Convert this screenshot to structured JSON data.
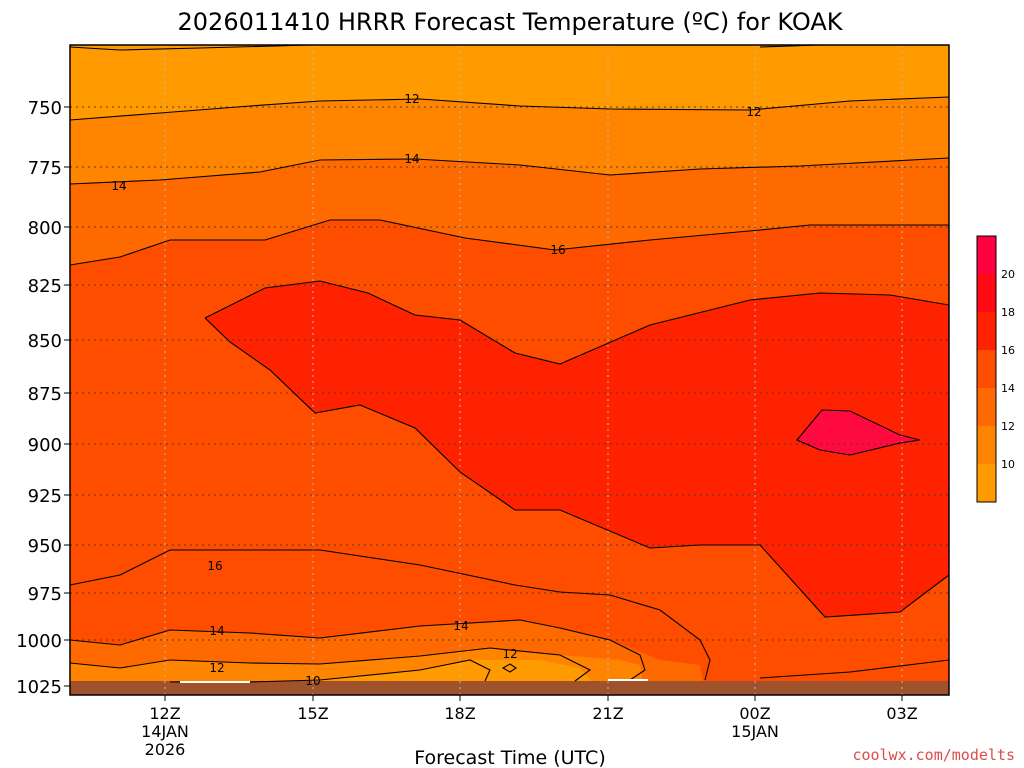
{
  "chart_data": {
    "type": "heatmap",
    "title": "2026011410 HRRR Forecast Temperature (ºC) for KOAK",
    "xlabel": "Forecast Time (UTC)",
    "ylabel": "",
    "credit": "coolwx.com/modelts",
    "y_ticks": [
      "750",
      "775",
      "800",
      "825",
      "850",
      "875",
      "900",
      "925",
      "950",
      "975",
      "1000",
      "1025"
    ],
    "x_ticks": [
      {
        "label": "12Z",
        "sub1": "14JAN",
        "sub2": "2026"
      },
      {
        "label": "15Z",
        "sub1": "",
        "sub2": ""
      },
      {
        "label": "18Z",
        "sub1": "",
        "sub2": ""
      },
      {
        "label": "21Z",
        "sub1": "",
        "sub2": ""
      },
      {
        "label": "00Z",
        "sub1": "15JAN",
        "sub2": ""
      },
      {
        "label": "03Z",
        "sub1": "",
        "sub2": ""
      }
    ],
    "colorbar": {
      "labels": [
        "10",
        "12",
        "14",
        "16",
        "18",
        "20"
      ],
      "colors": [
        "#ff9a00",
        "#ff8400",
        "#ff6a00",
        "#ff4d00",
        "#ff2200",
        "#ff0a14",
        "#ff0040"
      ]
    },
    "contour_labels": [
      "12",
      "12",
      "14",
      "14",
      "16",
      "16",
      "14",
      "14",
      "12",
      "12",
      "10"
    ],
    "colors": {
      "band_10": "#ff9a00",
      "band_12": "#ff8400",
      "band_14": "#ff6a00",
      "band_16": "#ff4d00",
      "band_18": "#ff2200",
      "band_20": "#ff0a40",
      "ground": "#a0522d",
      "credit": "#e04a4a"
    }
  }
}
